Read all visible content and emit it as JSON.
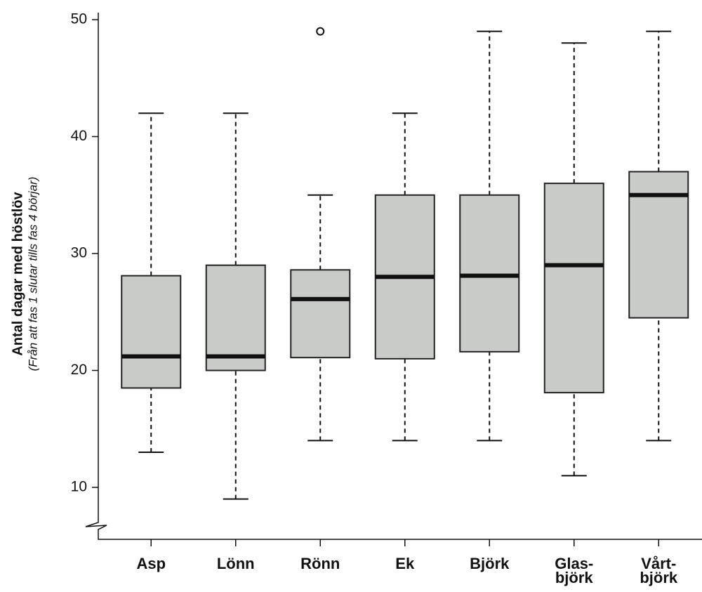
{
  "chart_data": {
    "type": "box",
    "y_label": "Antal dagar med höstlöv",
    "y_sublabel": "(Från att fas 1 slutar tills fas 4 börjar)",
    "categories": [
      "Asp",
      "Lönn",
      "Rönn",
      "Ek",
      "Björk",
      "Glas-\nbjörk",
      "Vårt-\nbjörk"
    ],
    "low": [
      13,
      9,
      14,
      14,
      14,
      11,
      14
    ],
    "q1": [
      18.5,
      20,
      21.1,
      21,
      21.6,
      18.1,
      24.5
    ],
    "median": [
      21.2,
      21.2,
      26.1,
      28,
      28.1,
      29,
      35
    ],
    "q3": [
      28.1,
      29,
      28.6,
      35,
      35,
      36,
      37
    ],
    "high": [
      42,
      42,
      35,
      42,
      49,
      48,
      49
    ],
    "outliers": [
      [],
      [],
      [
        49
      ],
      [],
      [],
      [],
      []
    ],
    "color": "#c9cbc9",
    "ylim": [
      7,
      50.6
    ],
    "yticks": [
      10,
      20,
      30,
      40,
      50
    ]
  }
}
